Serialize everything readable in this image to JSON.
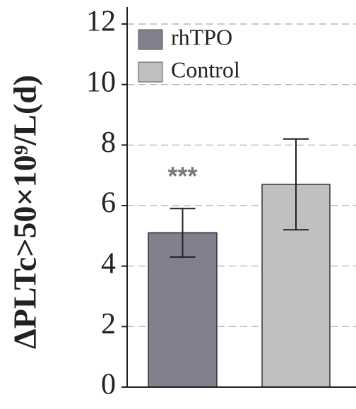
{
  "chart_data": {
    "type": "bar",
    "ylabel": "ΔPLTc>50×10⁹/L(d)",
    "series": [
      {
        "name": "rhTPO",
        "color": "#80808e",
        "values": [
          5.1
        ],
        "errors": [
          0.8
        ]
      },
      {
        "name": "Control",
        "color": "#c0c0c0",
        "values": [
          6.7
        ],
        "errors": [
          1.5
        ]
      }
    ],
    "annotation": "***",
    "ylim": [
      0,
      12
    ],
    "yticks": [
      0,
      2,
      4,
      6,
      8,
      10,
      12
    ],
    "grid": true
  }
}
